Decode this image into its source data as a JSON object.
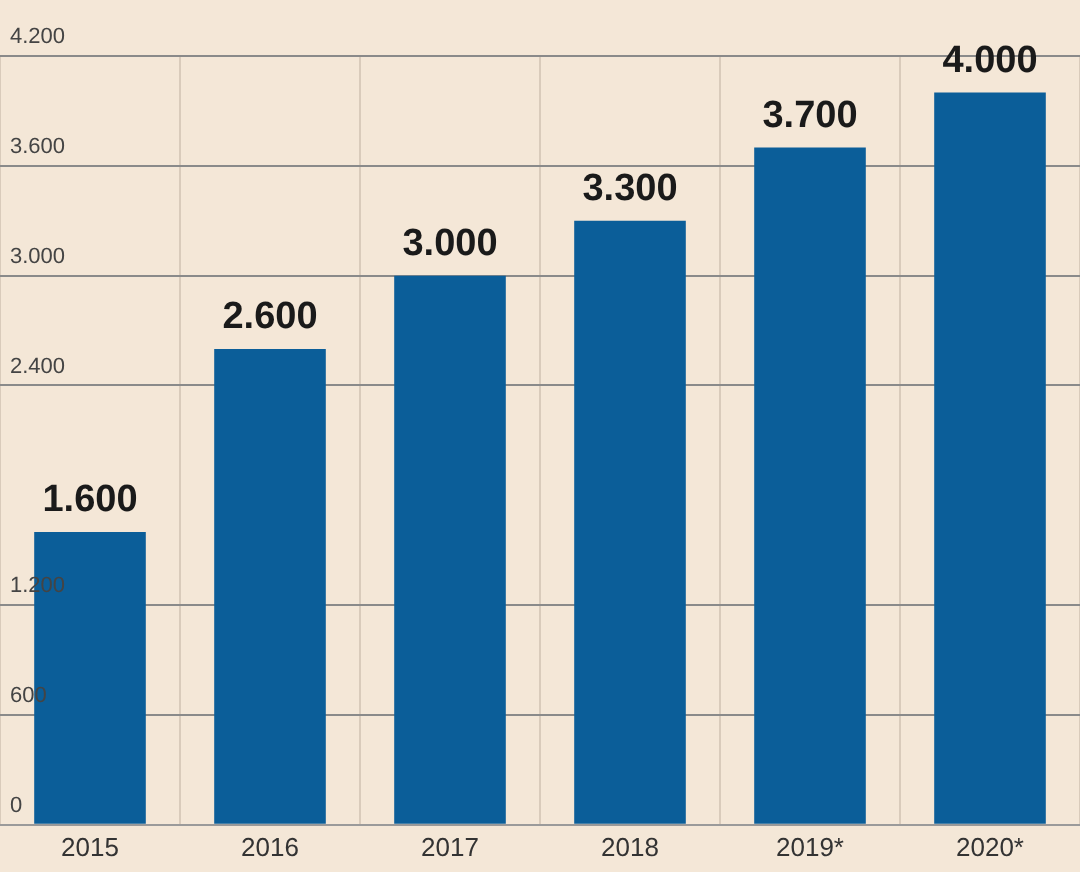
{
  "chart_data": {
    "type": "bar",
    "categories": [
      "2015",
      "2016",
      "2017",
      "2018",
      "2019*",
      "2020*"
    ],
    "values": [
      1600,
      2600,
      3000,
      3300,
      3700,
      4000
    ],
    "value_labels": [
      "1.600",
      "2.600",
      "3.000",
      "3.300",
      "3.700",
      "4.000"
    ],
    "color": "#0b5e99",
    "ylim": [
      0,
      4200
    ],
    "yticks": [
      {
        "value": 0,
        "label": "0"
      },
      {
        "value": 600,
        "label": "600"
      },
      {
        "value": 1200,
        "label": "1.200"
      },
      {
        "value": 2400,
        "label": "2.400"
      },
      {
        "value": 3000,
        "label": "3.000"
      },
      {
        "value": 3600,
        "label": "3.600"
      },
      {
        "value": 4200,
        "label": "4.200"
      }
    ],
    "grid": true,
    "legend": false
  }
}
